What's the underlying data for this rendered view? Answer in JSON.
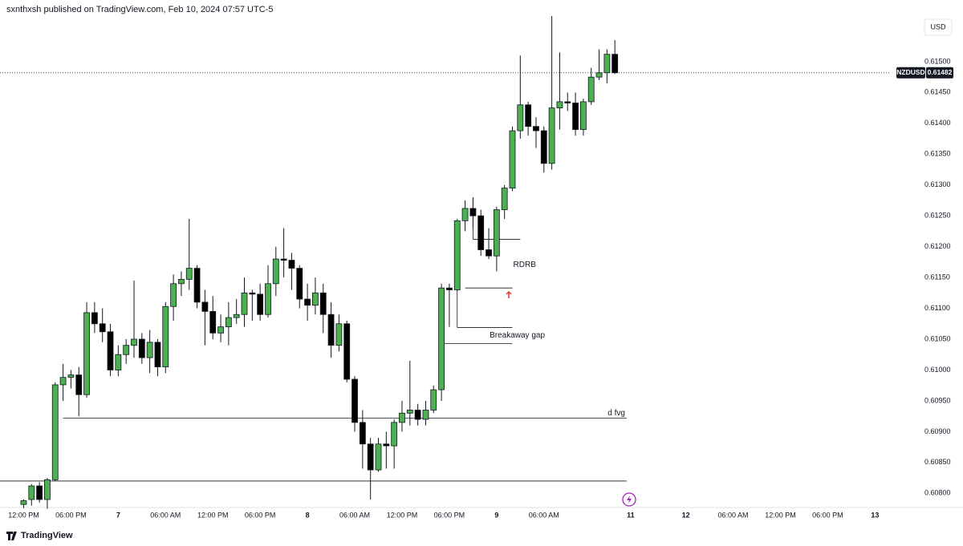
{
  "header": {
    "title": "sxnthxsh published on TradingView.com, Feb 10, 2024 07:57 UTC-5"
  },
  "footer": {
    "brand": "TradingView"
  },
  "chart_data": {
    "type": "candlestick",
    "symbol": "NZDUSD",
    "currency": "USD",
    "last_price": 0.61482,
    "up_color": "#4caf50",
    "down_color": "#000000",
    "x": [
      0,
      1,
      2,
      3,
      4,
      5,
      6,
      7,
      8,
      9,
      10,
      11,
      12,
      13,
      14,
      15,
      16,
      17,
      18,
      19,
      20,
      21,
      22,
      23,
      24,
      25,
      26,
      27,
      28,
      29,
      30,
      31,
      32,
      33,
      34,
      35,
      36,
      37,
      38,
      39,
      40,
      41,
      42,
      43,
      44,
      45,
      46,
      47,
      48,
      49,
      50,
      51,
      52,
      53,
      54,
      55,
      56,
      57,
      58,
      59,
      60,
      61,
      62,
      63,
      64,
      65,
      66,
      67,
      68,
      69,
      70,
      71,
      72,
      73,
      74,
      75
    ],
    "open": [
      0.60782,
      0.6079,
      0.60812,
      0.6079,
      0.60822,
      0.60976,
      0.60988,
      0.60992,
      0.6096,
      0.61093,
      0.61075,
      0.61062,
      0.61,
      0.61025,
      0.6104,
      0.6105,
      0.6102,
      0.61045,
      0.61005,
      0.61103,
      0.6114,
      0.61147,
      0.61165,
      0.6111,
      0.61095,
      0.6106,
      0.6107,
      0.61085,
      0.6109,
      0.61125,
      0.61123,
      0.6109,
      0.6114,
      0.6118,
      0.61178,
      0.61165,
      0.61115,
      0.61105,
      0.61125,
      0.6109,
      0.6104,
      0.61075,
      0.60985,
      0.60915,
      0.6088,
      0.60838,
      0.6088,
      0.60877,
      0.60915,
      0.6093,
      0.60935,
      0.6092,
      0.60935,
      0.60968,
      0.61133,
      0.6113,
      0.61242,
      0.61262,
      0.6125,
      0.61195,
      0.61185,
      0.6126,
      0.61295,
      0.61388,
      0.6143,
      0.61395,
      0.61388,
      0.61335,
      0.61425,
      0.61435,
      0.61433,
      0.6139,
      0.61435,
      0.61475,
      0.61482,
      0.61512
    ],
    "high": [
      0.6079,
      0.60815,
      0.60818,
      0.60825,
      0.6098,
      0.6101,
      0.61,
      0.61005,
      0.6111,
      0.6111,
      0.611,
      0.61075,
      0.6104,
      0.6105,
      0.61145,
      0.6106,
      0.61065,
      0.6105,
      0.6111,
      0.61155,
      0.6116,
      0.61245,
      0.6117,
      0.6113,
      0.6112,
      0.6109,
      0.6111,
      0.61115,
      0.6115,
      0.6113,
      0.6114,
      0.6117,
      0.612,
      0.6123,
      0.6119,
      0.6117,
      0.6114,
      0.6115,
      0.6114,
      0.6111,
      0.6109,
      0.6108,
      0.6099,
      0.60935,
      0.6089,
      0.6089,
      0.609,
      0.6092,
      0.6095,
      0.61015,
      0.60945,
      0.6095,
      0.60975,
      0.6114,
      0.6114,
      0.61245,
      0.61275,
      0.6128,
      0.6126,
      0.6123,
      0.61265,
      0.613,
      0.61395,
      0.6151,
      0.61435,
      0.6141,
      0.61395,
      0.61574,
      0.61515,
      0.6145,
      0.6145,
      0.6144,
      0.6149,
      0.6152,
      0.6152,
      0.61535
    ],
    "low": [
      0.60776,
      0.6078,
      0.60785,
      0.60775,
      0.6082,
      0.6095,
      0.6097,
      0.60925,
      0.60955,
      0.6106,
      0.61045,
      0.6099,
      0.6099,
      0.6101,
      0.6102,
      0.6101,
      0.60995,
      0.6099,
      0.60995,
      0.6108,
      0.6112,
      0.6113,
      0.611,
      0.6104,
      0.6105,
      0.61045,
      0.6104,
      0.61075,
      0.6107,
      0.6108,
      0.6108,
      0.61085,
      0.6112,
      0.6115,
      0.6113,
      0.611,
      0.6108,
      0.6109,
      0.6106,
      0.6102,
      0.6103,
      0.6098,
      0.609,
      0.6084,
      0.6079,
      0.60835,
      0.6084,
      0.6084,
      0.609,
      0.6091,
      0.6091,
      0.6091,
      0.6093,
      0.6095,
      0.6107,
      0.61128,
      0.61225,
      0.6123,
      0.61185,
      0.6118,
      0.6116,
      0.61245,
      0.6129,
      0.61375,
      0.6138,
      0.6136,
      0.6132,
      0.61325,
      0.6139,
      0.6142,
      0.6138,
      0.6138,
      0.6143,
      0.6147,
      0.61465,
      0.6148
    ],
    "close": [
      0.60788,
      0.60812,
      0.6079,
      0.60822,
      0.60976,
      0.60988,
      0.60992,
      0.6096,
      0.61093,
      0.61075,
      0.61062,
      0.61,
      0.61025,
      0.6104,
      0.6105,
      0.6102,
      0.61045,
      0.61005,
      0.61103,
      0.6114,
      0.61147,
      0.61165,
      0.6111,
      0.61095,
      0.6106,
      0.6107,
      0.61085,
      0.6109,
      0.61125,
      0.61123,
      0.6109,
      0.6114,
      0.6118,
      0.61178,
      0.61165,
      0.61115,
      0.61105,
      0.61125,
      0.6109,
      0.6104,
      0.61075,
      0.60985,
      0.60915,
      0.6088,
      0.60838,
      0.6088,
      0.60877,
      0.60915,
      0.6093,
      0.60935,
      0.6092,
      0.60935,
      0.60968,
      0.61133,
      0.6113,
      0.61242,
      0.61262,
      0.6125,
      0.61195,
      0.61185,
      0.6126,
      0.61295,
      0.61388,
      0.6143,
      0.61395,
      0.61388,
      0.61335,
      0.61425,
      0.61435,
      0.61433,
      0.6139,
      0.61435,
      0.61475,
      0.61482,
      0.61512,
      0.61482
    ],
    "xlim": [
      -3,
      110
    ],
    "xticks": [
      {
        "value": 0,
        "label": "12:00 PM"
      },
      {
        "value": 6,
        "label": "06:00 PM"
      },
      12,
      {
        "value": 18,
        "label": "06:00 AM"
      },
      {
        "value": 24,
        "label": "12:00 PM"
      },
      {
        "value": 30,
        "label": "06:00 PM"
      },
      36,
      {
        "value": 42,
        "label": "06:00 AM"
      },
      {
        "value": 48,
        "label": "12:00 PM"
      },
      {
        "value": 54,
        "label": "06:00 PM"
      },
      60,
      {
        "value": 66,
        "label": "06:00 AM"
      },
      77,
      84,
      {
        "value": 90,
        "label": "06:00 AM"
      },
      {
        "value": 96,
        "label": "12:00 PM"
      },
      {
        "value": 102,
        "label": "06:00 PM"
      },
      108
    ],
    "xtick_labels_numeric": [
      {
        "value": 12,
        "label": "7"
      },
      {
        "value": 36,
        "label": "8"
      },
      {
        "value": 60,
        "label": "9"
      },
      {
        "value": 77,
        "label": "11"
      },
      {
        "value": 84,
        "label": "12"
      },
      {
        "value": 108,
        "label": "13"
      }
    ],
    "ylim": [
      0.60777,
      0.61574
    ],
    "yticks": [
      {
        "value": 0.608,
        "label": "0.60800"
      },
      {
        "value": 0.6085,
        "label": "0.60850"
      },
      {
        "value": 0.609,
        "label": "0.60900"
      },
      {
        "value": 0.6095,
        "label": "0.60950"
      },
      {
        "value": 0.61,
        "label": "0.61000"
      },
      {
        "value": 0.6105,
        "label": "0.61050"
      },
      {
        "value": 0.611,
        "label": "0.61100"
      },
      {
        "value": 0.6115,
        "label": "0.61150"
      },
      {
        "value": 0.612,
        "label": "0.61200"
      },
      {
        "value": 0.6125,
        "label": "0.61250"
      },
      {
        "value": 0.613,
        "label": "0.61300"
      },
      {
        "value": 0.6135,
        "label": "0.61350"
      },
      {
        "value": 0.614,
        "label": "0.61400"
      },
      {
        "value": 0.6145,
        "label": "0.61450"
      },
      {
        "value": 0.615,
        "label": "0.61500"
      }
    ],
    "grid": false,
    "lines": [
      {
        "y": 0.60922,
        "x": [
          5,
          76.5
        ],
        "label": "d fvg"
      },
      {
        "y": 0.6082,
        "x": [
          -3,
          76.5
        ]
      },
      {
        "y": 0.61212,
        "x": [
          57,
          63
        ]
      },
      {
        "y": 0.61133,
        "x": [
          56,
          62
        ],
        "label": "RDRB"
      },
      {
        "y": 0.61069,
        "x": [
          55,
          62
        ]
      },
      {
        "y": 0.61043,
        "x": [
          53,
          62
        ],
        "label": "Breakaway gap"
      }
    ]
  }
}
